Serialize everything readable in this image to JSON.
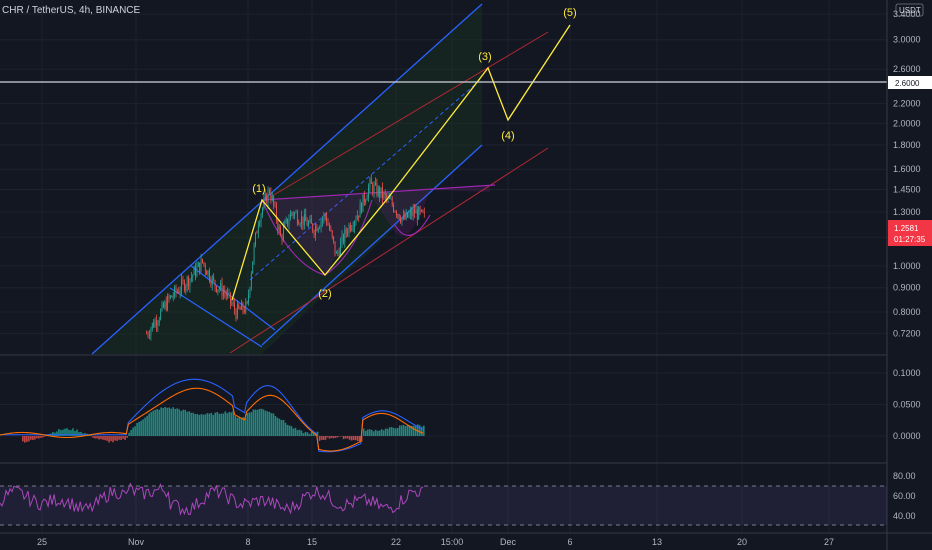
{
  "header": {
    "symbol": "CHR / TetherUS, 4h, BINANCE"
  },
  "currency_badge": "USDT",
  "price_box": {
    "price": "1.2581",
    "countdown": "01:27:35",
    "color": "#f23645"
  },
  "level_box": {
    "label": "2.6000"
  },
  "colors": {
    "background": "#131722",
    "channel": "#2962ff",
    "inner_channel": "#b22833",
    "wave": "#ffeb3b",
    "pattern": "#9c27b0",
    "up": "#26a69a",
    "down": "#ef5350",
    "macd": "#2962ff",
    "signal": "#ff6d00",
    "rsi": "#7e57c2"
  },
  "chart_data": [
    {
      "type": "line",
      "panel": "price",
      "scale": "log",
      "y_ticks": [
        "3.4000",
        "3.0000",
        "2.6000",
        "2.2000",
        "2.0000",
        "1.8000",
        "1.6000",
        "1.4500",
        "1.3000",
        "1.1500",
        "1.0000",
        "0.9000",
        "0.8000",
        "0.7200"
      ],
      "x_ticks": [
        "25",
        "Nov",
        "8",
        "15",
        "22",
        "15:00",
        "Dec",
        "6",
        "13",
        "20",
        "27"
      ],
      "series": [
        {
          "x": [
            "Nov 1",
            "Nov 2",
            "Nov 3",
            "Nov 4",
            "Nov 5",
            "Nov 6",
            "Nov 7",
            "Nov 8",
            "Nov 9",
            "Nov 10",
            "Nov 11",
            "Nov 12",
            "Nov 13",
            "Nov 14",
            "Nov 15",
            "Nov 16",
            "Nov 17",
            "Nov 18",
            "Nov 19",
            "Nov 20",
            "Nov 21",
            "Nov 22",
            "Nov 23",
            "Nov 24",
            "Nov 25",
            "Nov 26"
          ],
          "y": [
            0.72,
            0.78,
            0.85,
            0.9,
            0.95,
            1.02,
            0.92,
            0.88,
            0.8,
            0.82,
            1.25,
            1.45,
            1.15,
            1.3,
            1.25,
            1.2,
            1.28,
            1.05,
            1.2,
            1.3,
            1.48,
            1.42,
            1.35,
            1.25,
            1.3,
            1.26
          ]
        }
      ],
      "wave_labels": [
        {
          "label": "(1)",
          "x": "Nov 10",
          "y": 1.45
        },
        {
          "label": "(2)",
          "x": "Nov 17",
          "y": 0.97
        },
        {
          "label": "(3)",
          "x": "Nov 29",
          "y": 2.85
        },
        {
          "label": "(4)",
          "x": "Nov 30",
          "y": 2.15
        },
        {
          "label": "(5)",
          "x": "Dec 5",
          "y": 3.45
        }
      ],
      "horizontal_level": 2.6
    },
    {
      "type": "bar",
      "panel": "macd",
      "y_ticks": [
        "0.1000",
        "0.0500",
        "0.0000"
      ],
      "ylim": [
        -0.025,
        0.12
      ]
    },
    {
      "type": "line",
      "panel": "rsi",
      "y_ticks": [
        "80.00",
        "60.00",
        "40.00"
      ],
      "ylim": [
        28,
        84
      ],
      "bands": [
        70,
        30
      ]
    }
  ]
}
